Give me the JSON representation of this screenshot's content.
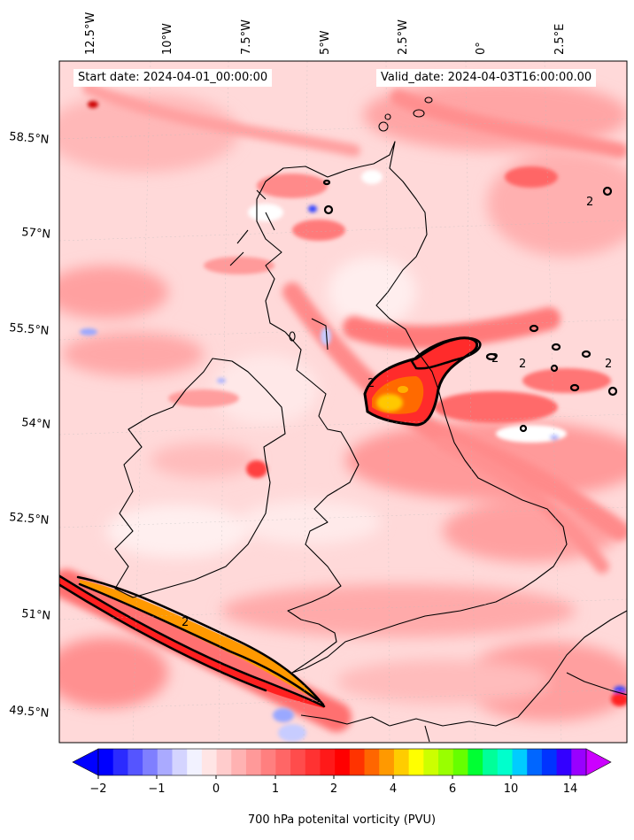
{
  "annotations": {
    "start_date": "Start date: 2024-04-01_00:00:00",
    "valid_date": "Valid_date: 2024-04-03T16:00:00.00"
  },
  "axes": {
    "lon_ticks": [
      "12.5°W",
      "10°W",
      "7.5°W",
      "5°W",
      "2.5°W",
      "0°",
      "2.5°E"
    ],
    "lat_ticks": [
      "58.5°N",
      "57°N",
      "55.5°N",
      "54°N",
      "52.5°N",
      "51°N",
      "49.5°N"
    ]
  },
  "colorbar": {
    "label": "700 hPa potenital vorticity (PVU)",
    "tick_labels": [
      "−2",
      "−1",
      "0",
      "1",
      "2",
      "4",
      "6",
      "10",
      "14"
    ],
    "extend": "both",
    "colors": [
      "#0000ff",
      "#2b2bff",
      "#5555ff",
      "#7f7fff",
      "#aaaaff",
      "#d4d4ff",
      "#f2f2ff",
      "#ffe5e5",
      "#ffcccc",
      "#ffb2b2",
      "#ff9999",
      "#ff7f7f",
      "#ff6666",
      "#ff4c4c",
      "#ff3232",
      "#ff1919",
      "#ff0000",
      "#ff3300",
      "#ff6600",
      "#ff9900",
      "#ffcc00",
      "#ffff00",
      "#ccff00",
      "#99ff00",
      "#66ff00",
      "#00ff33",
      "#00ff99",
      "#00ffcc",
      "#00ccff",
      "#0066ff",
      "#0033ff",
      "#3300ff",
      "#9900ff"
    ]
  },
  "contour_labels": [
    "2",
    "2",
    "2",
    "2",
    "2",
    "2"
  ],
  "colors": {
    "background_fill": "#ffd9d9",
    "coastline": "#000000",
    "contour": "#000000"
  }
}
